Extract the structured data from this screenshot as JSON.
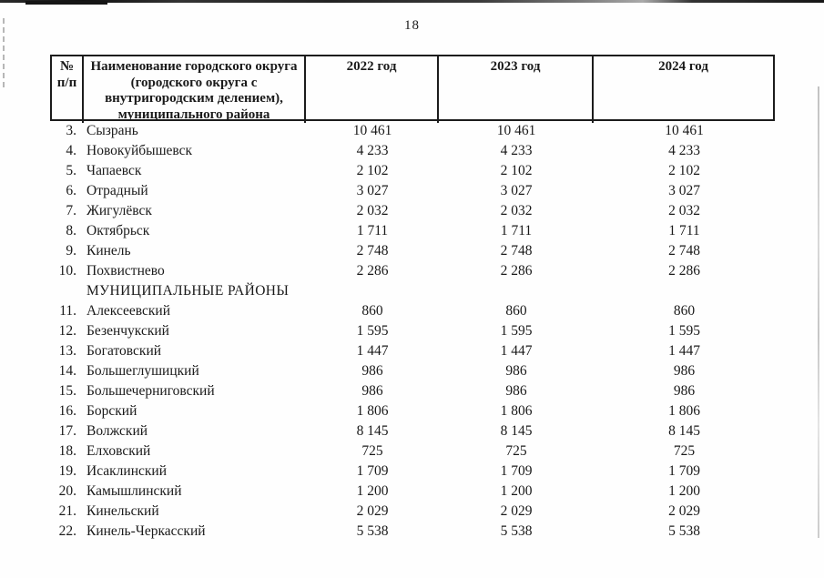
{
  "page": {
    "number": "18"
  },
  "colors": {
    "text": "#1a1a1a",
    "table_border": "#1c1c1c",
    "background": "#fefefe"
  },
  "table": {
    "header": {
      "num": "№\nп/п",
      "name": "Наименование городского округа\n(городского округа с\nвнутригородским делением),\nмуниципального района",
      "years": [
        "2022 год",
        "2023 год",
        "2024 год"
      ]
    },
    "rows": [
      {
        "num": "3.",
        "name": "Сызрань",
        "values": [
          "10 461",
          "10 461",
          "10 461"
        ]
      },
      {
        "num": "4.",
        "name": "Новокуйбышевск",
        "values": [
          "4 233",
          "4 233",
          "4 233"
        ]
      },
      {
        "num": "5.",
        "name": "Чапаевск",
        "values": [
          "2 102",
          "2 102",
          "2 102"
        ]
      },
      {
        "num": "6.",
        "name": "Отрадный",
        "values": [
          "3 027",
          "3 027",
          "3 027"
        ]
      },
      {
        "num": "7.",
        "name": "Жигулёвск",
        "values": [
          "2 032",
          "2 032",
          "2 032"
        ]
      },
      {
        "num": "8.",
        "name": "Октябрьск",
        "values": [
          "1 711",
          "1 711",
          "1 711"
        ]
      },
      {
        "num": "9.",
        "name": "Кинель",
        "values": [
          "2 748",
          "2 748",
          "2 748"
        ]
      },
      {
        "num": "10.",
        "name": "Похвистнево",
        "values": [
          "2 286",
          "2 286",
          "2 286"
        ]
      },
      {
        "section": "МУНИЦИПАЛЬНЫЕ РАЙОНЫ"
      },
      {
        "num": "11.",
        "name": "Алексеевский",
        "values": [
          "860",
          "860",
          "860"
        ]
      },
      {
        "num": "12.",
        "name": "Безенчукский",
        "values": [
          "1 595",
          "1 595",
          "1 595"
        ]
      },
      {
        "num": "13.",
        "name": "Богатовский",
        "values": [
          "1 447",
          "1 447",
          "1 447"
        ]
      },
      {
        "num": "14.",
        "name": "Большеглушицкий",
        "values": [
          "986",
          "986",
          "986"
        ]
      },
      {
        "num": "15.",
        "name": "Большечерниговский",
        "values": [
          "986",
          "986",
          "986"
        ]
      },
      {
        "num": "16.",
        "name": "Борский",
        "values": [
          "1 806",
          "1 806",
          "1 806"
        ]
      },
      {
        "num": "17.",
        "name": "Волжский",
        "values": [
          "8 145",
          "8 145",
          "8 145"
        ]
      },
      {
        "num": "18.",
        "name": "Елховский",
        "values": [
          "725",
          "725",
          "725"
        ]
      },
      {
        "num": "19.",
        "name": "Исаклинский",
        "values": [
          "1 709",
          "1 709",
          "1 709"
        ]
      },
      {
        "num": "20.",
        "name": "Камышлинский",
        "values": [
          "1 200",
          "1 200",
          "1 200"
        ]
      },
      {
        "num": "21.",
        "name": "Кинельский",
        "values": [
          "2 029",
          "2 029",
          "2 029"
        ]
      },
      {
        "num": "22.",
        "name": "Кинель-Черкасский",
        "values": [
          "5 538",
          "5 538",
          "5 538"
        ]
      }
    ]
  }
}
